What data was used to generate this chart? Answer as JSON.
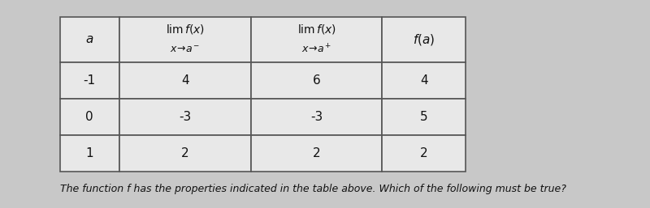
{
  "col_headers": [
    "$a$",
    "$\\lim_{x\\to a^-} f(x)$",
    "$\\lim_{x\\to a^+} f(x)$",
    "$f(a)$"
  ],
  "rows": [
    [
      "-1",
      "4",
      "6",
      "4"
    ],
    [
      "0",
      "-3",
      "-3",
      "5"
    ],
    [
      "1",
      "2",
      "2",
      "2"
    ]
  ],
  "caption": "The function f has the properties indicated in the table above. Which of the following must be true?",
  "bg_color": "#d6d6d6",
  "table_bg": "#e8e8e8",
  "border_color": "#555555",
  "text_color": "#111111",
  "caption_color": "#111111",
  "fig_bg": "#c8c8c8"
}
